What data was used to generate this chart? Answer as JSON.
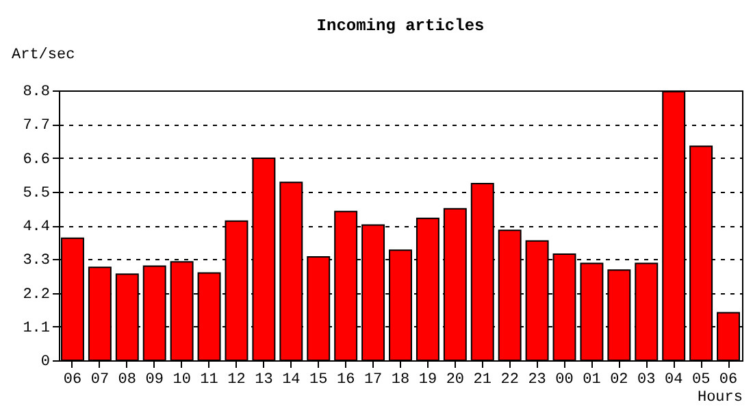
{
  "chart_data": {
    "type": "bar",
    "title": "Incoming articles",
    "ylabel": "Art/sec",
    "xlabel": "Hours",
    "categories": [
      "06",
      "07",
      "08",
      "09",
      "10",
      "11",
      "12",
      "13",
      "14",
      "15",
      "16",
      "17",
      "18",
      "19",
      "20",
      "21",
      "22",
      "23",
      "00",
      "01",
      "02",
      "03",
      "04",
      "05",
      "06"
    ],
    "series": [
      {
        "color": "#ff0000",
        "values": [
          3.98,
          3.03,
          2.81,
          3.07,
          3.21,
          2.85,
          4.54,
          6.59,
          5.8,
          3.37,
          4.85,
          4.41,
          3.59,
          4.63,
          4.94,
          5.76,
          4.24,
          3.89,
          3.46,
          3.16,
          2.94,
          3.16,
          8.76,
          6.98,
          1.55
        ]
      }
    ],
    "ylim": [
      0,
      8.8
    ],
    "yticks": [
      0,
      1.1,
      2.2,
      3.3,
      4.4,
      5.5,
      6.6,
      7.7,
      8.8
    ],
    "grid": "y"
  }
}
